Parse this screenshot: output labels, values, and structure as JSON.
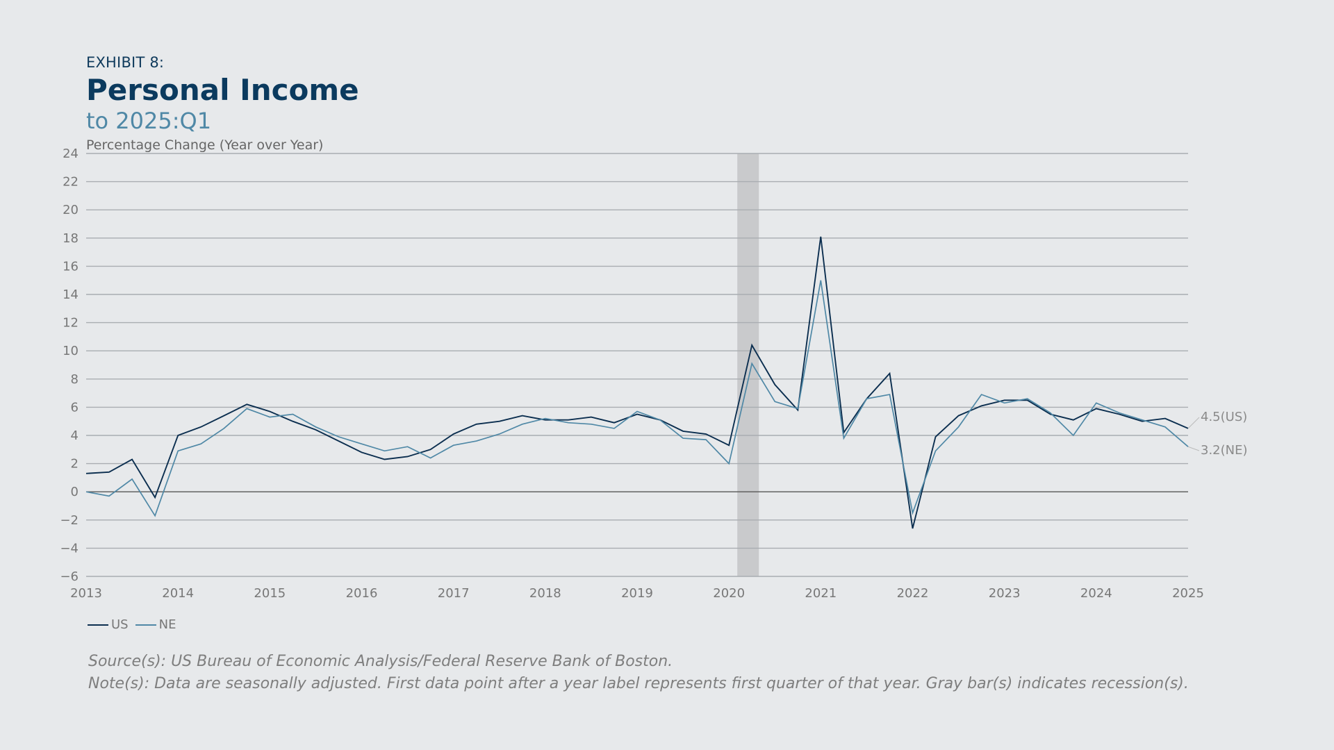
{
  "header": {
    "exhibit": "EXHIBIT 8:",
    "title": "Personal Income",
    "subtitle": "to 2025:Q1",
    "y_axis_label": "Percentage Change (Year over Year)"
  },
  "legend": [
    {
      "name": "US",
      "color": "#0b2e4f"
    },
    {
      "name": "NE",
      "color": "#4f88a6"
    }
  ],
  "notes": {
    "source": "Source(s): US Bureau of Economic Analysis/Federal Reserve Bank of Boston.",
    "note": "Note(s): Data are seasonally adjusted. First data point after a year label represents first quarter of that year. Gray bar(s) indicates recession(s)."
  },
  "chart_data": {
    "type": "line",
    "title": "Personal Income",
    "subtitle": "to 2025:Q1",
    "ylabel": "Percentage Change (Year over Year)",
    "ylim": [
      -6,
      24
    ],
    "yticks": [
      -6,
      -4,
      -2,
      0,
      2,
      4,
      6,
      8,
      10,
      12,
      14,
      16,
      18,
      20,
      22,
      24
    ],
    "xlim": [
      2013,
      2025
    ],
    "xticks": [
      2013,
      2014,
      2015,
      2016,
      2017,
      2018,
      2019,
      2020,
      2021,
      2022,
      2023,
      2024,
      2025
    ],
    "grid": true,
    "legend_position": "bottom-left",
    "recession": [
      [
        2020.0,
        2020.25
      ]
    ],
    "series": [
      {
        "name": "US",
        "color": "#0b2e4f",
        "end_label": "4.5(US)",
        "values": [
          1.3,
          1.4,
          2.3,
          -0.4,
          4.0,
          4.6,
          5.4,
          6.2,
          5.7,
          5.0,
          4.4,
          3.6,
          2.8,
          2.3,
          2.5,
          3.0,
          4.1,
          4.8,
          5.0,
          5.4,
          5.1,
          5.1,
          5.3,
          4.9,
          5.5,
          5.1,
          4.3,
          4.1,
          3.3,
          10.4,
          7.6,
          5.8,
          18.1,
          4.2,
          6.6,
          8.4,
          -2.6,
          3.9,
          5.4,
          6.1,
          6.5,
          6.5,
          5.5,
          5.1,
          5.9,
          5.5,
          5.0,
          5.2,
          4.5
        ]
      },
      {
        "name": "NE",
        "color": "#4f88a6",
        "end_label": "3.2(NE)",
        "values": [
          0.0,
          -0.3,
          0.9,
          -1.7,
          2.9,
          3.4,
          4.5,
          5.9,
          5.3,
          5.5,
          4.6,
          3.9,
          3.4,
          2.9,
          3.2,
          2.4,
          3.3,
          3.6,
          4.1,
          4.8,
          5.2,
          4.9,
          4.8,
          4.5,
          5.7,
          5.1,
          3.8,
          3.7,
          2.0,
          9.1,
          6.4,
          5.9,
          15.0,
          3.8,
          6.6,
          6.9,
          -1.5,
          2.9,
          4.6,
          6.9,
          6.3,
          6.6,
          5.6,
          4.0,
          6.3,
          5.6,
          5.1,
          4.6,
          3.2
        ]
      }
    ]
  }
}
